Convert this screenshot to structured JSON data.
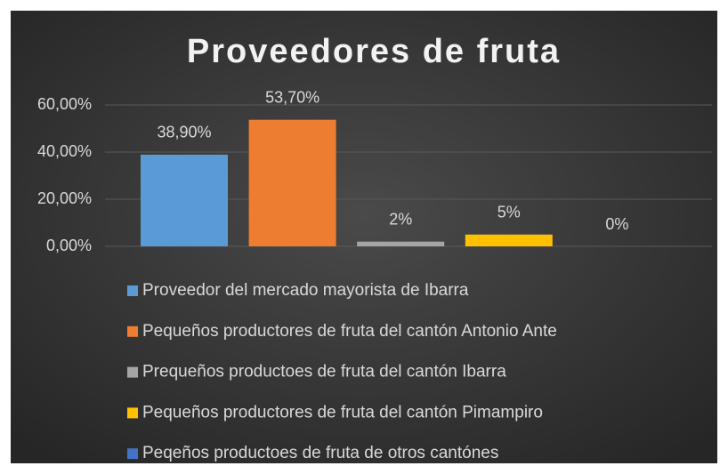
{
  "chart_data": {
    "type": "bar",
    "title": "Proveedores de fruta",
    "categories": [
      null
    ],
    "series": [
      {
        "name": "Proveedor del mercado mayorista de Ibarra",
        "color": "#5b9bd5",
        "values": [
          38.9
        ],
        "value_labels": [
          "38,90%"
        ]
      },
      {
        "name": "Pequeños productores de fruta del cantón Antonio Ante",
        "color": "#ed7d31",
        "values": [
          53.7
        ],
        "value_labels": [
          "53,70%"
        ]
      },
      {
        "name": "Prequeños productoes de fruta del cantón Ibarra",
        "color": "#a5a5a5",
        "values": [
          2
        ],
        "value_labels": [
          "2%"
        ]
      },
      {
        "name": "Pequeños productores de fruta del cantón Pimampiro",
        "color": "#ffc000",
        "values": [
          5
        ],
        "value_labels": [
          "5%"
        ]
      },
      {
        "name": "Peqeños productoes de fruta de otros cantónes",
        "color": "#4472c4",
        "values": [
          0
        ],
        "value_labels": [
          "0%"
        ]
      }
    ],
    "ylim": [
      0,
      60
    ],
    "yticks": [
      {
        "value": 0,
        "label": "0,00%"
      },
      {
        "value": 20,
        "label": "20,00%"
      },
      {
        "value": 40,
        "label": "40,00%"
      },
      {
        "value": 60,
        "label": "60,00%"
      }
    ],
    "grid": true,
    "legend": "bottom"
  }
}
